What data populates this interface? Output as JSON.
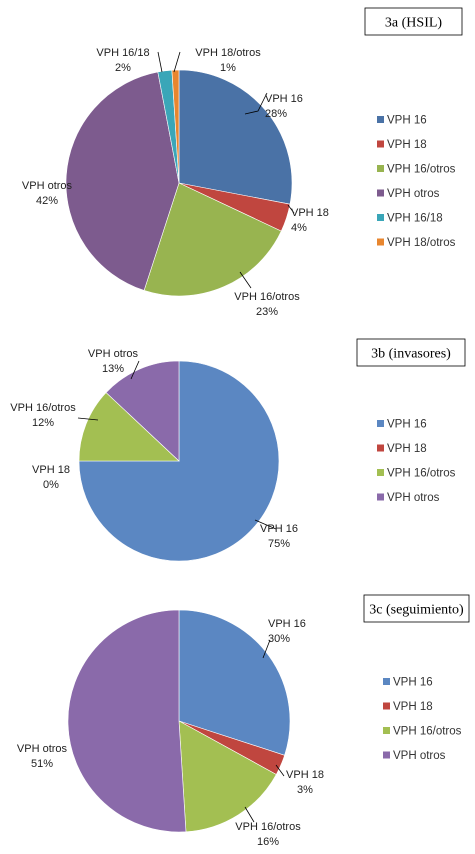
{
  "chart_data": [
    {
      "type": "pie",
      "title": "3a (HSIL)",
      "series": [
        {
          "name": "VPH 16",
          "value": 28,
          "label": "28%",
          "color": "#4a72a6"
        },
        {
          "name": "VPH 18",
          "value": 4,
          "label": "4%",
          "color": "#c0463f"
        },
        {
          "name": "VPH 16/otros",
          "value": 23,
          "label": "23%",
          "color": "#98b450"
        },
        {
          "name": "VPH otros",
          "value": 42,
          "label": "42%",
          "color": "#7d5b8e"
        },
        {
          "name": "VPH 16/18",
          "value": 2,
          "label": "2%",
          "color": "#3aa6b8"
        },
        {
          "name": "VPH 18/otros",
          "value": 1,
          "label": "1%",
          "color": "#e8862f"
        }
      ],
      "legend": "right"
    },
    {
      "type": "pie",
      "title": "3b (invasores)",
      "series": [
        {
          "name": "VPH 16",
          "value": 75,
          "label": "75%",
          "color": "#5b87c2"
        },
        {
          "name": "VPH 18",
          "value": 0,
          "label": "0%",
          "color": "#c0463f"
        },
        {
          "name": "VPH 16/otros",
          "value": 12,
          "label": "12%",
          "color": "#a3bf52"
        },
        {
          "name": "VPH otros",
          "value": 13,
          "label": "13%",
          "color": "#8a6aaa"
        }
      ],
      "legend": "right"
    },
    {
      "type": "pie",
      "title": "3c (seguimiento)",
      "series": [
        {
          "name": "VPH 16",
          "value": 30,
          "label": "30%",
          "color": "#5b87c2"
        },
        {
          "name": "VPH 18",
          "value": 3,
          "label": "3%",
          "color": "#c0463f"
        },
        {
          "name": "VPH 16/otros",
          "value": 16,
          "label": "16%",
          "color": "#a3bf52"
        },
        {
          "name": "VPH otros",
          "value": 51,
          "label": "51%",
          "color": "#8a6aaa"
        }
      ],
      "legend": "right"
    }
  ]
}
